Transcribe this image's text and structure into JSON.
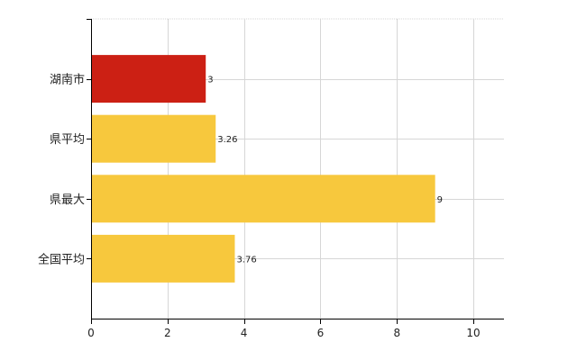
{
  "chart_data": {
    "type": "bar",
    "orientation": "horizontal",
    "categories": [
      "湖南市",
      "県平均",
      "県最大",
      "全国平均"
    ],
    "values": [
      3,
      3.26,
      9,
      3.76
    ],
    "value_labels": [
      "3",
      "3.26",
      "9",
      "3.76"
    ],
    "colors": [
      "#cc2014",
      "#f7c83d",
      "#f7c83d",
      "#f7c83d"
    ],
    "xlim": [
      0,
      10.8
    ],
    "xticks": [
      0,
      2,
      4,
      6,
      8,
      10
    ],
    "xtick_labels": [
      "0",
      "2",
      "4",
      "6",
      "8",
      "10"
    ],
    "grid": true,
    "legend": "none",
    "title": "",
    "xlabel": "",
    "ylabel": ""
  }
}
